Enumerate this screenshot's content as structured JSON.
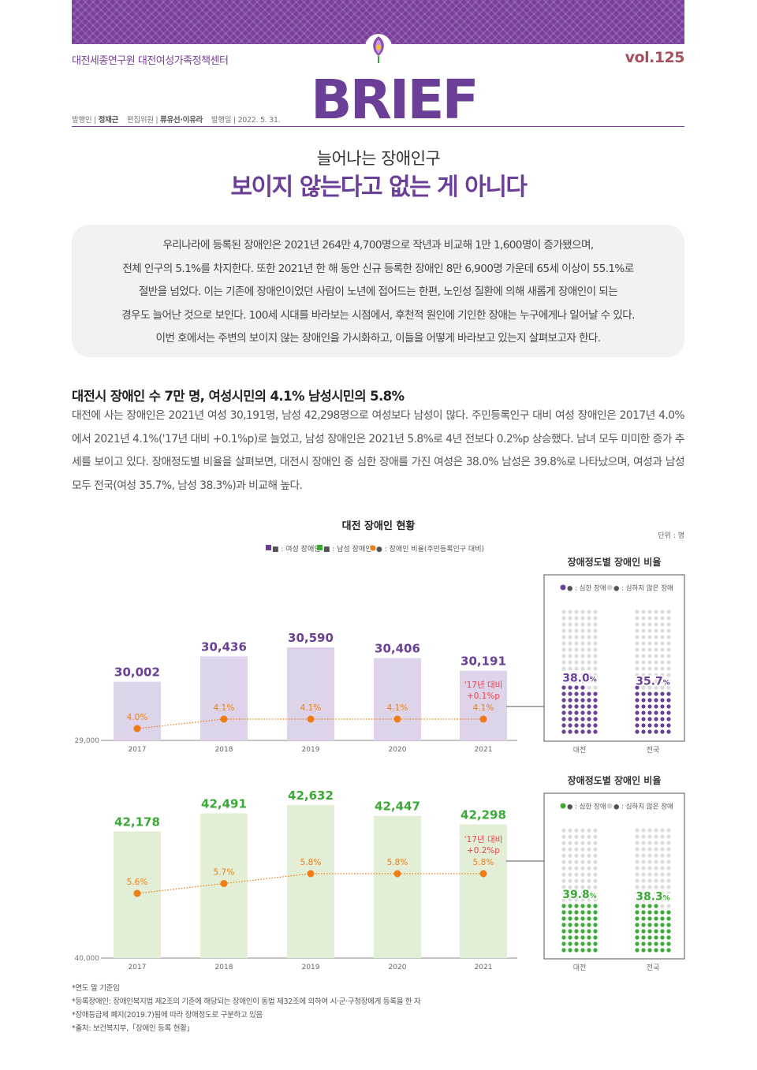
{
  "header": {
    "organization": "대전세종연구원 대전여성가족정책센터",
    "volume": "vol.125",
    "brand": "BRIEF",
    "credits": {
      "publisher_label": "발행인 |",
      "publisher": "정재근",
      "editors_label": "편집위원 |",
      "editors": "류유선·이유라",
      "date_label": "발행일 |",
      "date": "2022. 5. 31."
    }
  },
  "subtitle": "늘어나는 장애인구",
  "title": "보이지 않는다고 없는 게 아니다",
  "summary": [
    "우리나라에 등록된 장애인은 2021년 264만 4,700명으로 작년과 비교해 1만 1,600명이 증가됐으며,",
    "전체 인구의 5.1%를 차지한다. 또한 2021년 한 해 동안 신규 등록한 장애인 8만 6,900명 가운데 65세 이상이 55.1%로",
    "절반을 넘었다. 이는 기존에 장애인이었던 사람이 노년에 접어드는 한편, 노인성 질환에 의해 새롭게 장애인이 되는",
    "경우도 늘어난 것으로 보인다. 100세 시대를 바라보는 시점에서, 후천적 원인에 기인한 장애는 누구에게나 일어날 수 있다.",
    "이번 호에서는 주변의 보이지 않는 장애인을 가시화하고, 이들을 어떻게 바라보고 있는지 살펴보고자 한다."
  ],
  "section": {
    "heading": "대전시 장애인 수 7만 명, 여성시민의 4.1% 남성시민의 5.8%",
    "body": "대전에 사는 장애인은 2021년 여성 30,191명, 남성 42,298명으로 여성보다 남성이 많다. 주민등록인구 대비 여성 장애인은 2017년 4.0%에서 2021년 4.1%('17년 대비 +0.1%p)로 늘었고, 남성 장애인은 2021년 5.8%로 4년 전보다 0.2%p 상승했다. 남녀 모두 미미한 증가 추세를 보이고 있다. 장애정도별 비율을 살펴보면, 대전시 장애인 중 심한 장애를 가진 여성은 38.0% 남성은 39.8%로 나타났으며, 여성과 남성 모두 전국(여성 35.7%, 남성 38.3%)과 비교해 높다."
  },
  "chart_title": "대전 장애인 현황",
  "unit": "단위 : 명",
  "legend": {
    "female": "■ : 여성 장애인",
    "male": "■ : 남성 장애인",
    "ratio": "● : 장애인 비율(주민등록인구 대비)"
  },
  "colors": {
    "female": "#6b3f98",
    "female_bar": "#ddd4e9",
    "male": "#3aa935",
    "male_bar": "#e2efd6",
    "ratio": "#ef7d13",
    "annotation": "#e3464e"
  },
  "chart_data": [
    {
      "type": "bar",
      "series": [
        {
          "name": "여성 장애인",
          "values": [
            30002,
            30436,
            30590,
            30406,
            30191
          ]
        },
        {
          "name": "장애인 비율(주민등록인구 대비)",
          "type": "line",
          "values": [
            4.0,
            4.1,
            4.1,
            4.1,
            4.1
          ],
          "labels": [
            "4.0%",
            "4.1%",
            "4.1%",
            "4.1%",
            "4.1%"
          ]
        }
      ],
      "categories": [
        "2017",
        "2018",
        "2019",
        "2020",
        "2021"
      ],
      "value_labels": [
        "30,002",
        "30,436",
        "30,590",
        "30,406",
        "30,191"
      ],
      "ymin": 29000,
      "ymin_label": "29,000",
      "annotation": [
        "'17년 대비",
        "+0.1%p"
      ]
    },
    {
      "type": "bar",
      "series": [
        {
          "name": "남성 장애인",
          "values": [
            42178,
            42491,
            42632,
            42447,
            42298
          ]
        },
        {
          "name": "장애인 비율(주민등록인구 대비)",
          "type": "line",
          "values": [
            5.6,
            5.7,
            5.8,
            5.8,
            5.8
          ],
          "labels": [
            "5.6%",
            "5.7%",
            "5.8%",
            "5.8%",
            "5.8%"
          ]
        }
      ],
      "categories": [
        "2017",
        "2018",
        "2019",
        "2020",
        "2021"
      ],
      "value_labels": [
        "42,178",
        "42,491",
        "42,632",
        "42,447",
        "42,298"
      ],
      "ymin": 40000,
      "ymin_label": "40,000",
      "annotation": [
        "'17년 대비",
        "+0.2%p"
      ]
    },
    {
      "type": "pictogram",
      "title": "장애정도별 장애인 비율",
      "legend": [
        "● : 심한 장애",
        "● : 심하지 않은 장애"
      ],
      "categories": [
        "대전",
        "전국"
      ],
      "values": [
        38.0,
        35.7
      ],
      "value_labels": [
        "38.0",
        "35.7"
      ],
      "pct": "%"
    },
    {
      "type": "pictogram",
      "title": "장애정도별 장애인 비율",
      "legend": [
        "● : 심한 장애",
        "● : 심하지 않은 장애"
      ],
      "categories": [
        "대전",
        "전국"
      ],
      "values": [
        39.8,
        38.3
      ],
      "value_labels": [
        "39.8",
        "38.3"
      ],
      "pct": "%"
    }
  ],
  "notes": [
    "*연도 말 기준임",
    "*등록장애인: 장애인복지법 제2조의 기준에 해당되는 장애인이 동법 제32조에 의하여 시·군·구청장에게 등록을 한 자",
    "*장애등급제 폐지(2019.7)됨에 따라 장애정도로 구분하고 있음",
    "*출처: 보건복지부,「장애인 등록 현황」"
  ]
}
